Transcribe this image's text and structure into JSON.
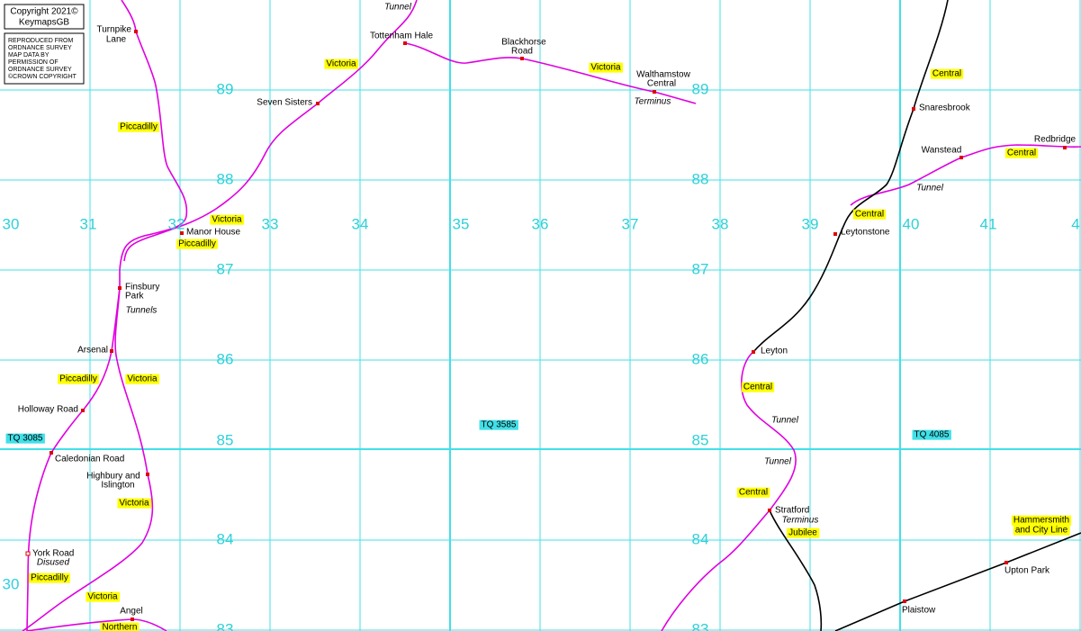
{
  "copyright": [
    "Copyright 2021©",
    "KeymapsGB"
  ],
  "notice": [
    "REPRODUCED FROM",
    "ORDNANCE SURVEY",
    "MAP DATA BY",
    "PERMISSION OF",
    "ORDNANCE SURVEY",
    "©CROWN COPYRIGHT"
  ],
  "northings_left": [
    "89",
    "88",
    "87",
    "86",
    "85",
    "84",
    "83"
  ],
  "northings_right": [
    "89",
    "88",
    "87",
    "86",
    "85",
    "84",
    "83"
  ],
  "eastings": [
    "30",
    "31",
    "32",
    "33",
    "34",
    "35",
    "36",
    "37",
    "38",
    "39",
    "40",
    "41",
    "4"
  ],
  "eastings_lower": [
    "30"
  ],
  "grid_squares": [
    "TQ 3085",
    "TQ 3585",
    "TQ 4085"
  ],
  "stations": [
    [
      "Turnpike",
      "Lane"
    ],
    [
      "Tottenham Hale"
    ],
    [
      "Blackhorse",
      "Road"
    ],
    [
      "Walthamstow",
      "Central"
    ],
    [
      "Seven Sisters"
    ],
    [
      "Manor House"
    ],
    [
      "Finsbury",
      "Park"
    ],
    [
      "Arsenal"
    ],
    [
      "Holloway Road"
    ],
    [
      "Caledonian Road"
    ],
    [
      "Highbury and",
      "Islington"
    ],
    [
      "York Road"
    ],
    [
      "Angel"
    ],
    [
      "Snaresbrook"
    ],
    [
      "Wanstead"
    ],
    [
      "Redbridge"
    ],
    [
      "Leytonstone"
    ],
    [
      "Leyton"
    ],
    [
      "Stratford"
    ],
    [
      "Plaistow"
    ],
    [
      "Upton Park"
    ]
  ],
  "line_labels": [
    [
      "Victoria"
    ],
    [
      "Victoria"
    ],
    [
      "Piccadilly"
    ],
    [
      "Victoria"
    ],
    [
      "Piccadilly"
    ],
    [
      "Piccadilly"
    ],
    [
      "Victoria"
    ],
    [
      "Victoria"
    ],
    [
      "Piccadilly"
    ],
    [
      "Victoria"
    ],
    [
      "Northern"
    ],
    [
      "Central"
    ],
    [
      "Central"
    ],
    [
      "Central"
    ],
    [
      "Central"
    ],
    [
      "Central"
    ],
    [
      "Jubilee"
    ],
    [
      "Hammersmith",
      "and City Line"
    ]
  ],
  "notes": [
    "Tunnel",
    "Terminus",
    "Tunnels",
    "Disused",
    "Tunnel",
    "Tunnel",
    "Tunnel",
    "Terminus"
  ]
}
